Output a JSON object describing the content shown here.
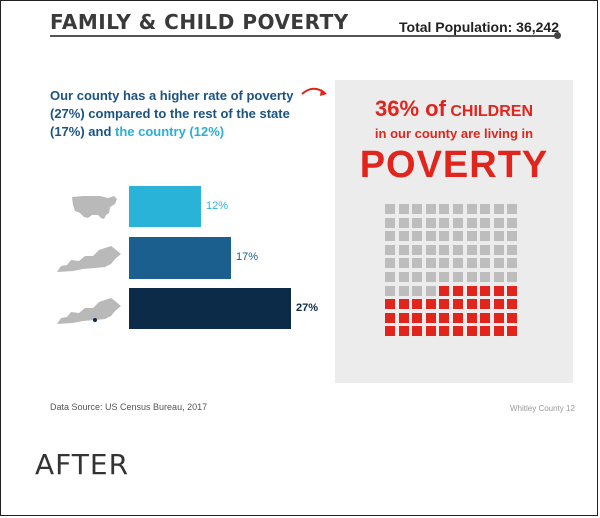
{
  "header": {
    "title": "FAMILY & CHILD POVERTY",
    "total_population": "Total Population: 36,242"
  },
  "intro": {
    "part1": "Our county has a higher rate of poverty (27%) compared to the rest of the state (17%) and ",
    "highlight": "the country (12%)"
  },
  "chart_data": {
    "type": "bar",
    "orientation": "horizontal",
    "categories": [
      "United States",
      "Kentucky",
      "Whitley County"
    ],
    "values": [
      12,
      17,
      27
    ],
    "labels": [
      "12%",
      "17%",
      "27%"
    ],
    "colors": [
      "#29b3d8",
      "#1a5f8e",
      "#0c2b48"
    ],
    "label_colors": [
      "#29b3d8",
      "#1a5f8e",
      "#0c2b48"
    ],
    "icons": [
      "usa-map-icon",
      "kentucky-map-icon",
      "kentucky-county-map-icon"
    ],
    "xlim": [
      0,
      100
    ]
  },
  "panel": {
    "pct": "36% of",
    "children": " CHILDREN",
    "line2": "in our county are living in",
    "line3": "POVERTY",
    "waffle": {
      "rows": 10,
      "cols": 10,
      "filled": 36,
      "filled_color": "#e1241c",
      "empty_color": "#bdbdbd"
    }
  },
  "footer": {
    "source": "Data Source: US Census Bureau, 2017",
    "page": "Whitley County  12"
  },
  "caption": "AFTER"
}
